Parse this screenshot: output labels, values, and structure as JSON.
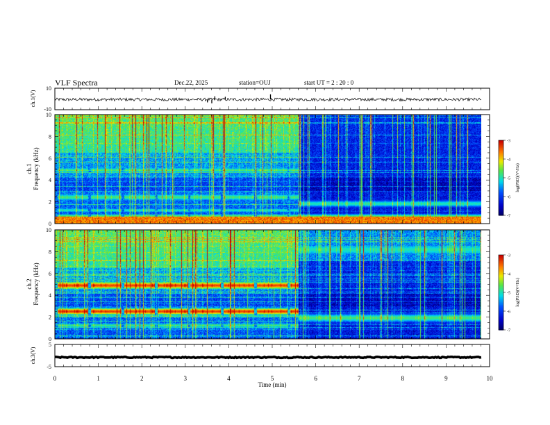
{
  "header": {
    "title": "VLF Spectra",
    "date": "Dec.22, 2025",
    "station": "station=OUJ",
    "start": "start  UT =   2 : 20 : 0"
  },
  "chart_data": [
    {
      "type": "line",
      "name": "ch1-waveform",
      "ylabel": "ch.1(V)",
      "ylim": [
        -10,
        10
      ],
      "ytick_labels": [
        "10",
        "-10"
      ],
      "baseline": -0.5,
      "noise_amplitude": 1.4,
      "spikes": [
        {
          "t": 3.51,
          "v": -3.2
        },
        {
          "t": 3.61,
          "v": -4.0
        },
        {
          "t": 3.68,
          "v": 2.5
        },
        {
          "t": 4.96,
          "v": 4.3
        },
        {
          "t": 3.92,
          "v": 2.0
        }
      ]
    },
    {
      "type": "heatmap",
      "name": "ch1-spectrogram",
      "ylabel_top": "ch.1",
      "ylabel": "Frequency (kHz)",
      "ylim": [
        0,
        10
      ],
      "ytick_labels": [
        "0",
        "2",
        "4",
        "6",
        "8",
        "10"
      ],
      "colorbar": {
        "label": "log(PSD)(V²/Hz)",
        "range": [
          -7,
          -3
        ],
        "tick_labels": [
          "-3",
          "-4",
          "-5",
          "-6",
          "-7"
        ]
      },
      "change_time": 5.6,
      "before_bands": [
        {
          "f": 4.9,
          "w": 0.2,
          "v": 0.55
        },
        {
          "f": 2.4,
          "w": 0.25,
          "v": 0.55
        },
        {
          "f": 1.2,
          "w": 0.15,
          "v": 0.5
        },
        {
          "f": 0.6,
          "w": 0.2,
          "v": 0.6
        }
      ],
      "after_bands": [
        {
          "f": 1.8,
          "w": 0.25,
          "v": 0.5
        },
        {
          "f": 0.6,
          "w": 0.2,
          "v": 0.6
        }
      ]
    },
    {
      "type": "heatmap",
      "name": "ch2-spectrogram",
      "ylabel_top": "ch.2",
      "ylabel": "Frequency (kHz)",
      "ylim": [
        0,
        10
      ],
      "ytick_labels": [
        "0",
        "2",
        "4",
        "6",
        "8",
        "10"
      ],
      "colorbar": {
        "label": "log(PSD)(V²/Hz)",
        "range": [
          -7,
          -3
        ],
        "tick_labels": [
          "-3",
          "-4",
          "-5",
          "-6",
          "-7"
        ]
      },
      "change_time": 5.6,
      "before_bands": [
        {
          "f": 4.9,
          "w": 0.25,
          "v": 0.92
        },
        {
          "f": 2.5,
          "w": 0.25,
          "v": 0.92
        },
        {
          "f": 1.2,
          "w": 0.15,
          "v": 0.55
        }
      ],
      "after_bands": [
        {
          "f": 8.2,
          "w": 0.4,
          "v": 0.5
        },
        {
          "f": 1.9,
          "w": 0.3,
          "v": 0.55
        }
      ]
    },
    {
      "type": "line",
      "name": "ch3-waveform",
      "ylabel": "ch.3(V)",
      "ylim": [
        -5,
        5
      ],
      "ytick_labels": [
        "5",
        "-5"
      ],
      "baseline": -0.8,
      "noise_amplitude": 0.25
    }
  ],
  "xaxis": {
    "label": "Time (min)",
    "range": [
      0,
      10
    ],
    "tick_labels": [
      "0",
      "1",
      "2",
      "3",
      "4",
      "5",
      "6",
      "7",
      "8",
      "9",
      "10"
    ],
    "data_end": 9.82
  }
}
